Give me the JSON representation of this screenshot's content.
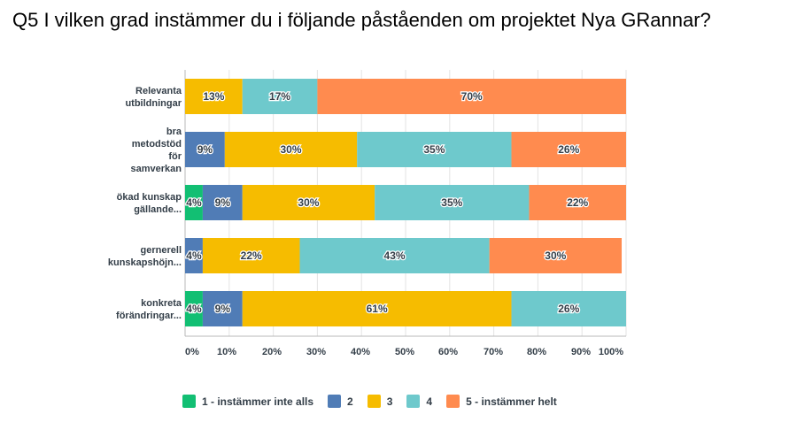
{
  "chart_data": {
    "type": "bar",
    "orientation": "horizontal",
    "stacked": true,
    "title": "Q5 I vilken grad instämmer du i följande påståenden om projektet Nya GRannar?",
    "categories": [
      [
        "Relevanta",
        "utbildningar"
      ],
      [
        "bra",
        "metodstöd",
        "för",
        "samverkan"
      ],
      [
        "ökad kunskap",
        "gällande..."
      ],
      [
        "gernerell",
        "kunskapshöjn..."
      ],
      [
        "konkreta",
        "förändringar..."
      ]
    ],
    "series": [
      {
        "name": "1 - instämmer inte alls",
        "color": "#12bf73",
        "values": [
          0,
          0,
          4,
          0,
          4
        ],
        "labels": [
          "",
          "",
          "4%",
          "",
          "4%"
        ]
      },
      {
        "name": "2",
        "color": "#507cb6",
        "values": [
          0,
          9,
          9,
          4,
          9
        ],
        "labels": [
          "",
          "9%",
          "9%",
          "4%",
          "9%"
        ]
      },
      {
        "name": "3",
        "color": "#f6bc00",
        "values": [
          13,
          30,
          30,
          22,
          61
        ],
        "labels": [
          "13%",
          "30%",
          "30%",
          "22%",
          "61%"
        ]
      },
      {
        "name": "4",
        "color": "#6ec9cc",
        "values": [
          17,
          35,
          35,
          43,
          26
        ],
        "labels": [
          "17%",
          "35%",
          "35%",
          "43%",
          "26%"
        ]
      },
      {
        "name": "5 - instämmer helt",
        "color": "#ff8b4f",
        "values": [
          70,
          26,
          22,
          30,
          0
        ],
        "labels": [
          "70%",
          "26%",
          "22%",
          "30%",
          ""
        ]
      }
    ],
    "xlim": [
      0,
      100
    ],
    "xticks": [
      "0%",
      "10%",
      "20%",
      "30%",
      "40%",
      "50%",
      "60%",
      "70%",
      "80%",
      "90%",
      "100%"
    ],
    "legend_position": "bottom"
  }
}
